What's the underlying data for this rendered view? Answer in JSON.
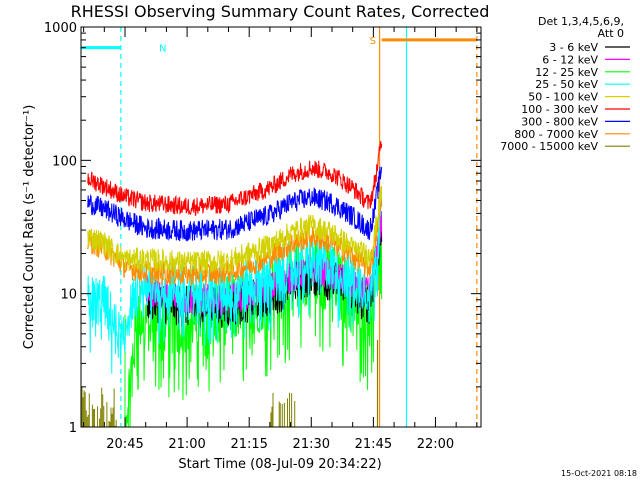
{
  "chart_data": {
    "type": "line",
    "title": "RHESSI Observing Summary Count Rates, Corrected",
    "ylabel": "Corrected Count Rate (s⁻¹ detector⁻¹)",
    "xlabel": "Start Time (08-Jul-09 20:34:22)",
    "y_scale": "log",
    "ylim": [
      1,
      1000
    ],
    "xlim": [
      "20:34:22",
      "22:11"
    ],
    "x_ticks": [
      "20:45",
      "21:00",
      "21:15",
      "21:30",
      "21:45",
      "22:00"
    ],
    "y_ticks": [
      "1",
      "10",
      "100",
      "1000"
    ],
    "grid": false,
    "legend_position": "top-right",
    "legend_header": [
      "Det 1,3,4,5,6,9,",
      "Att 0"
    ],
    "footer": "15-Oct-2021 08:18",
    "series": [
      {
        "name": "3 - 6 keV",
        "color": "#000000",
        "x": [
          "20:37",
          "20:45",
          "20:50",
          "21:00",
          "21:10",
          "21:20",
          "21:25",
          "21:30",
          "21:35",
          "21:40",
          "21:44",
          "21:45",
          "21:47"
        ],
        "values": [
          null,
          null,
          9,
          8,
          8,
          9.5,
          11.5,
          14,
          12.5,
          10,
          8.5,
          12,
          30
        ]
      },
      {
        "name": "6 - 12 keV",
        "color": "#ff00ff",
        "x": [
          "20:37",
          "20:45",
          "20:50",
          "21:00",
          "21:10",
          "21:20",
          "21:25",
          "21:30",
          "21:35",
          "21:40",
          "21:44",
          "21:45",
          "21:47"
        ],
        "values": [
          null,
          null,
          10.5,
          9,
          9,
          11,
          13,
          15.5,
          14,
          11.5,
          10,
          14,
          35
        ]
      },
      {
        "name": "12 - 25 keV",
        "color": "#00ff00",
        "x": [
          "20:45",
          "20:48",
          "20:50",
          "21:00",
          "21:10",
          "21:20",
          "21:25",
          "21:30",
          "21:35",
          "21:40",
          "21:44",
          "21:45",
          "21:47"
        ],
        "values": [
          1,
          7,
          6.5,
          6.5,
          7.5,
          10,
          13,
          15.5,
          13,
          9.5,
          7.5,
          10,
          30
        ]
      },
      {
        "name": "25 - 50 keV",
        "color": "#00ffff",
        "x": [
          "20:36",
          "20:40",
          "20:44",
          "20:48",
          "20:55",
          "21:00",
          "21:10",
          "21:20",
          "21:25",
          "21:30",
          "21:35",
          "21:40",
          "21:44",
          "21:45",
          "21:47"
        ],
        "values": [
          9,
          9,
          4.5,
          12,
          11.5,
          11,
          11,
          13.5,
          16.5,
          18.5,
          16,
          13,
          11,
          15,
          40
        ]
      },
      {
        "name": "50 - 100 keV",
        "color": "#d2d200",
        "x": [
          "20:36",
          "20:40",
          "20:45",
          "20:50",
          "21:00",
          "21:10",
          "21:20",
          "21:25",
          "21:30",
          "21:35",
          "21:40",
          "21:44",
          "21:45",
          "21:47"
        ],
        "values": [
          27,
          24,
          18,
          18,
          17,
          17.5,
          23,
          28.5,
          32.5,
          28.5,
          22,
          19,
          24,
          60
        ]
      },
      {
        "name": "100 - 300 keV",
        "color": "#ff0000",
        "x": [
          "20:36",
          "20:40",
          "20:45",
          "20:50",
          "21:00",
          "21:10",
          "21:20",
          "21:25",
          "21:30",
          "21:35",
          "21:40",
          "21:44",
          "21:45",
          "21:47"
        ],
        "values": [
          73,
          64,
          53,
          48,
          45,
          47,
          62,
          78,
          88,
          80,
          62,
          47,
          60,
          140
        ]
      },
      {
        "name": "300 - 800 keV",
        "color": "#0000ff",
        "x": [
          "20:36",
          "20:40",
          "20:45",
          "20:50",
          "21:00",
          "21:10",
          "21:20",
          "21:25",
          "21:30",
          "21:35",
          "21:40",
          "21:44",
          "21:45",
          "21:47"
        ],
        "values": [
          48,
          43,
          36,
          31,
          29.5,
          30.5,
          39,
          48,
          53,
          48,
          38,
          30,
          38,
          90
        ]
      },
      {
        "name": "800 - 7000 keV",
        "color": "#ff8c00",
        "x": [
          "20:36",
          "20:40",
          "20:45",
          "20:50",
          "21:00",
          "21:10",
          "21:20",
          "21:25",
          "21:30",
          "21:35",
          "21:40",
          "21:44",
          "21:45",
          "21:47"
        ],
        "values": [
          25,
          22,
          16,
          14.5,
          14,
          14.5,
          19,
          23.5,
          27,
          24,
          19,
          15.5,
          20,
          50
        ]
      },
      {
        "name": "7000 - 15000 keV",
        "color": "#808000",
        "x": [
          "20:34:22",
          "20:43",
          "21:20",
          "21:26",
          "21:45",
          "21:46"
        ],
        "values": [
          1.8,
          1.8,
          1.9,
          1.9,
          1,
          4.5
        ]
      }
    ],
    "flags": [
      {
        "label": "N",
        "color": "#00ffff",
        "level": 700,
        "start": "20:34:22",
        "end": "20:44",
        "marker_line": "20:44"
      },
      {
        "label": "S",
        "color": "#ff8c00",
        "level": 800,
        "start": "21:47",
        "end": "22:10",
        "marker_line": "22:10"
      }
    ],
    "vertical_lines": [
      {
        "color": "#ff8c00",
        "x": "21:46.5",
        "style": "solid"
      },
      {
        "color": "#00ffff",
        "x": "21:53",
        "style": "solid"
      },
      {
        "color": "#ff8c00",
        "x": "22:10",
        "style": "dashed"
      },
      {
        "color": "#00ffff",
        "x": "20:44",
        "style": "dashed"
      }
    ]
  }
}
